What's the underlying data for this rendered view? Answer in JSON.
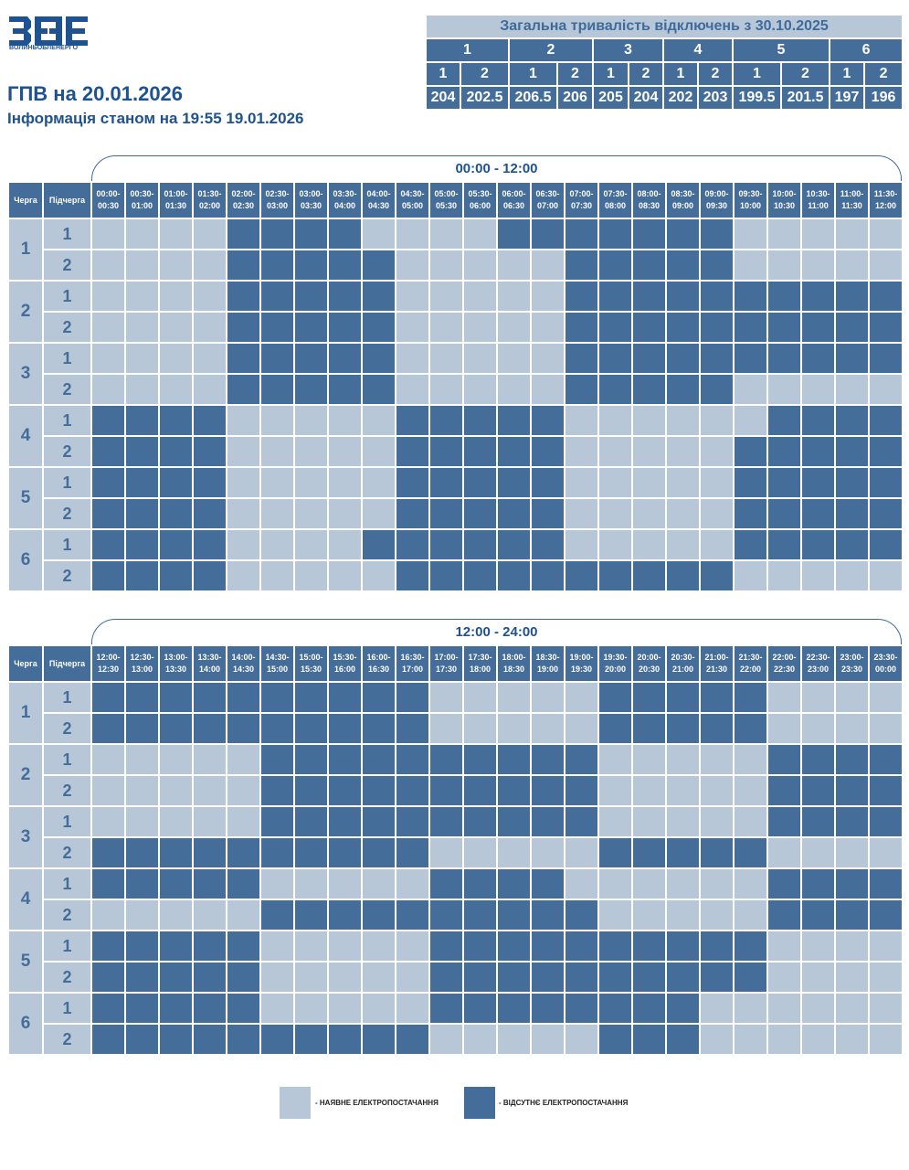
{
  "logo": {
    "name": "ВОЛИНЬОБЛЕНЕРГО"
  },
  "title": "ГПВ на 20.01.2026",
  "subtitle": "Інформація станом на 19:55 19.01.2026",
  "summary": {
    "caption": "Загальна тривалість відключень з 30.10.2025",
    "queues": [
      "1",
      "2",
      "3",
      "4",
      "5",
      "6"
    ],
    "subqueues": [
      "1",
      "2",
      "1",
      "2",
      "1",
      "2",
      "1",
      "2",
      "1",
      "2",
      "1",
      "2"
    ],
    "totals": [
      "204",
      "202.5",
      "206.5",
      "206",
      "205",
      "204",
      "202",
      "203",
      "199.5",
      "201.5",
      "197",
      "196"
    ]
  },
  "headers": {
    "queue": "Черга",
    "subqueue": "Підчерга"
  },
  "rows": [
    {
      "queue": "1",
      "sub": "1"
    },
    {
      "queue": "1",
      "sub": "2"
    },
    {
      "queue": "2",
      "sub": "1"
    },
    {
      "queue": "2",
      "sub": "2"
    },
    {
      "queue": "3",
      "sub": "1"
    },
    {
      "queue": "3",
      "sub": "2"
    },
    {
      "queue": "4",
      "sub": "1"
    },
    {
      "queue": "4",
      "sub": "2"
    },
    {
      "queue": "5",
      "sub": "1"
    },
    {
      "queue": "5",
      "sub": "2"
    },
    {
      "queue": "6",
      "sub": "1"
    },
    {
      "queue": "6",
      "sub": "2"
    }
  ],
  "sections": [
    {
      "title": "00:00 - 12:00",
      "slots": [
        [
          "00:00-",
          "00:30"
        ],
        [
          "00:30-",
          "01:00"
        ],
        [
          "01:00-",
          "01:30"
        ],
        [
          "01:30-",
          "02:00"
        ],
        [
          "02:00-",
          "02:30"
        ],
        [
          "02:30-",
          "03:00"
        ],
        [
          "03:00-",
          "03:30"
        ],
        [
          "03:30-",
          "04:00"
        ],
        [
          "04:00-",
          "04:30"
        ],
        [
          "04:30-",
          "05:00"
        ],
        [
          "05:00-",
          "05:30"
        ],
        [
          "05:30-",
          "06:00"
        ],
        [
          "06:00-",
          "06:30"
        ],
        [
          "06:30-",
          "07:00"
        ],
        [
          "07:00-",
          "07:30"
        ],
        [
          "07:30-",
          "08:00"
        ],
        [
          "08:00-",
          "08:30"
        ],
        [
          "08:30-",
          "09:00"
        ],
        [
          "09:00-",
          "09:30"
        ],
        [
          "09:30-",
          "10:00"
        ],
        [
          "10:00-",
          "10:30"
        ],
        [
          "10:30-",
          "11:00"
        ],
        [
          "11:00-",
          "11:30"
        ],
        [
          "11:30-",
          "12:00"
        ]
      ],
      "grid": [
        [
          0,
          0,
          0,
          0,
          1,
          1,
          1,
          1,
          0,
          0,
          0,
          0,
          1,
          1,
          1,
          1,
          1,
          1,
          1,
          0,
          0,
          0,
          0,
          0
        ],
        [
          0,
          0,
          0,
          0,
          1,
          1,
          1,
          1,
          1,
          0,
          0,
          0,
          0,
          0,
          1,
          1,
          1,
          1,
          1,
          0,
          0,
          0,
          0,
          0
        ],
        [
          0,
          0,
          0,
          0,
          1,
          1,
          1,
          1,
          1,
          0,
          0,
          0,
          0,
          0,
          1,
          1,
          1,
          1,
          1,
          1,
          1,
          1,
          1,
          1
        ],
        [
          0,
          0,
          0,
          0,
          1,
          1,
          1,
          1,
          1,
          0,
          0,
          0,
          0,
          0,
          1,
          1,
          1,
          1,
          1,
          1,
          1,
          1,
          1,
          1
        ],
        [
          0,
          0,
          0,
          0,
          1,
          1,
          1,
          1,
          1,
          0,
          0,
          0,
          0,
          0,
          1,
          1,
          1,
          1,
          1,
          1,
          1,
          1,
          1,
          1
        ],
        [
          0,
          0,
          0,
          0,
          1,
          1,
          1,
          1,
          1,
          0,
          0,
          0,
          0,
          0,
          1,
          1,
          1,
          1,
          1,
          0,
          0,
          0,
          0,
          0
        ],
        [
          1,
          1,
          1,
          1,
          0,
          0,
          0,
          0,
          0,
          1,
          1,
          1,
          1,
          1,
          0,
          0,
          0,
          0,
          0,
          0,
          1,
          1,
          1,
          1
        ],
        [
          1,
          1,
          1,
          1,
          0,
          0,
          0,
          0,
          0,
          1,
          1,
          1,
          1,
          1,
          0,
          0,
          0,
          0,
          0,
          1,
          1,
          1,
          1,
          1
        ],
        [
          1,
          1,
          1,
          1,
          0,
          0,
          0,
          0,
          0,
          1,
          1,
          1,
          1,
          1,
          0,
          0,
          0,
          0,
          0,
          1,
          1,
          1,
          1,
          1
        ],
        [
          1,
          1,
          1,
          1,
          0,
          0,
          0,
          0,
          0,
          1,
          1,
          1,
          1,
          1,
          0,
          0,
          0,
          0,
          0,
          1,
          1,
          1,
          1,
          1
        ],
        [
          1,
          1,
          1,
          1,
          0,
          0,
          0,
          0,
          1,
          1,
          1,
          1,
          1,
          1,
          0,
          0,
          0,
          0,
          0,
          1,
          1,
          1,
          1,
          1
        ],
        [
          1,
          1,
          1,
          1,
          0,
          0,
          0,
          0,
          0,
          1,
          1,
          1,
          1,
          1,
          1,
          1,
          1,
          1,
          1,
          0,
          0,
          0,
          0,
          0
        ]
      ]
    },
    {
      "title": "12:00 - 24:00",
      "slots": [
        [
          "12:00-",
          "12:30"
        ],
        [
          "12:30-",
          "13:00"
        ],
        [
          "13:00-",
          "13:30"
        ],
        [
          "13:30-",
          "14:00"
        ],
        [
          "14:00-",
          "14:30"
        ],
        [
          "14:30-",
          "15:00"
        ],
        [
          "15:00-",
          "15:30"
        ],
        [
          "15:30-",
          "16:00"
        ],
        [
          "16:00-",
          "16:30"
        ],
        [
          "16:30-",
          "17:00"
        ],
        [
          "17:00-",
          "17:30"
        ],
        [
          "17:30-",
          "18:00"
        ],
        [
          "18:00-",
          "18:30"
        ],
        [
          "18:30-",
          "19:00"
        ],
        [
          "19:00-",
          "19:30"
        ],
        [
          "19:30-",
          "20:00"
        ],
        [
          "20:00-",
          "20:30"
        ],
        [
          "20:30-",
          "21:00"
        ],
        [
          "21:00-",
          "21:30"
        ],
        [
          "21:30-",
          "22:00"
        ],
        [
          "22:00-",
          "22:30"
        ],
        [
          "22:30-",
          "23:00"
        ],
        [
          "23:00-",
          "23:30"
        ],
        [
          "23:30-",
          "00:00"
        ]
      ],
      "grid": [
        [
          1,
          1,
          1,
          1,
          1,
          1,
          1,
          1,
          1,
          1,
          0,
          0,
          0,
          0,
          0,
          1,
          1,
          1,
          1,
          1,
          0,
          0,
          0,
          0
        ],
        [
          1,
          1,
          1,
          1,
          1,
          1,
          1,
          1,
          1,
          1,
          0,
          0,
          0,
          0,
          0,
          1,
          1,
          1,
          1,
          1,
          0,
          0,
          0,
          0
        ],
        [
          0,
          0,
          0,
          0,
          0,
          1,
          1,
          1,
          1,
          1,
          1,
          1,
          1,
          1,
          1,
          0,
          0,
          0,
          0,
          0,
          1,
          1,
          1,
          1
        ],
        [
          0,
          0,
          0,
          0,
          0,
          1,
          1,
          1,
          1,
          1,
          1,
          1,
          1,
          1,
          1,
          0,
          0,
          0,
          0,
          0,
          1,
          1,
          1,
          1
        ],
        [
          0,
          0,
          0,
          0,
          0,
          1,
          1,
          1,
          1,
          1,
          1,
          1,
          1,
          1,
          1,
          0,
          0,
          0,
          0,
          0,
          1,
          1,
          1,
          1
        ],
        [
          1,
          1,
          1,
          1,
          1,
          1,
          1,
          1,
          1,
          1,
          0,
          0,
          0,
          0,
          0,
          1,
          1,
          1,
          1,
          1,
          0,
          0,
          0,
          0
        ],
        [
          1,
          1,
          1,
          1,
          1,
          0,
          0,
          0,
          0,
          0,
          1,
          1,
          1,
          1,
          0,
          0,
          0,
          0,
          0,
          0,
          1,
          1,
          1,
          1
        ],
        [
          0,
          0,
          0,
          0,
          0,
          1,
          1,
          1,
          1,
          1,
          1,
          1,
          1,
          1,
          1,
          0,
          0,
          0,
          0,
          0,
          1,
          1,
          1,
          1
        ],
        [
          1,
          1,
          1,
          1,
          1,
          0,
          0,
          0,
          0,
          0,
          1,
          1,
          1,
          1,
          1,
          1,
          1,
          1,
          1,
          1,
          0,
          0,
          0,
          0
        ],
        [
          1,
          1,
          1,
          1,
          1,
          0,
          0,
          0,
          0,
          0,
          1,
          1,
          1,
          1,
          1,
          1,
          1,
          1,
          1,
          1,
          0,
          0,
          0,
          0
        ],
        [
          1,
          1,
          1,
          1,
          1,
          0,
          0,
          0,
          0,
          0,
          1,
          1,
          1,
          1,
          1,
          1,
          1,
          1,
          0,
          0,
          0,
          0,
          0,
          0
        ],
        [
          1,
          1,
          1,
          1,
          1,
          1,
          1,
          1,
          1,
          1,
          0,
          0,
          0,
          0,
          0,
          1,
          1,
          1,
          0,
          0,
          0,
          0,
          0,
          0
        ]
      ]
    }
  ],
  "legend": {
    "available": "- НАЯВНЕ ЕЛЕКТРОПОСТАЧАННЯ",
    "absent": "- ВІДСУТНЄ ЕЛЕКТРОПОСТАЧАННЯ",
    "available_color": "#b8c7d8",
    "absent_color": "#446d99"
  }
}
